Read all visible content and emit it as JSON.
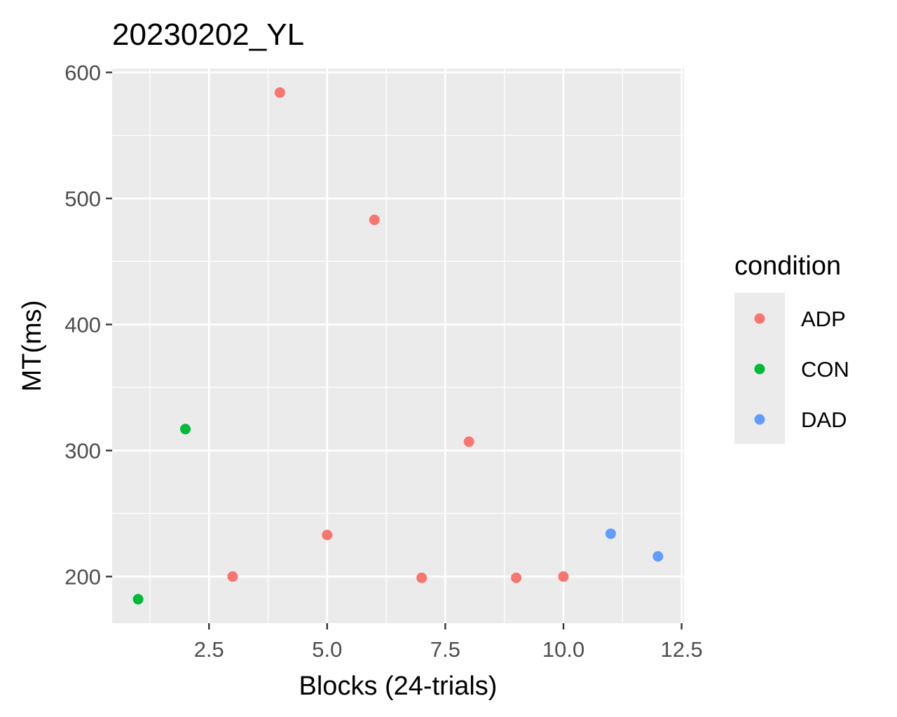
{
  "chart_data": {
    "type": "scatter",
    "title": "20230202_YL",
    "xlabel": "Blocks (24-trials)",
    "ylabel": "MT(ms)",
    "xlim": [
      0.45,
      12.55
    ],
    "ylim": [
      163,
      603
    ],
    "x_ticks": [
      2.5,
      5.0,
      7.5,
      10.0,
      12.5
    ],
    "x_tick_labels": [
      "2.5",
      "5.0",
      "7.5",
      "10.0",
      "12.5"
    ],
    "y_ticks": [
      200,
      300,
      400,
      500,
      600
    ],
    "y_tick_labels": [
      "200",
      "300",
      "400",
      "500",
      "600"
    ],
    "grid": true,
    "background": "#ebebeb",
    "legend": {
      "title": "condition",
      "position": "right",
      "entries": [
        {
          "label": "ADP",
          "color": "#f8766d"
        },
        {
          "label": "CON",
          "color": "#00ba38"
        },
        {
          "label": "DAD",
          "color": "#619cff"
        }
      ]
    },
    "series": [
      {
        "name": "ADP",
        "color": "#f8766d",
        "points": [
          {
            "x": 3,
            "y": 200
          },
          {
            "x": 4,
            "y": 584
          },
          {
            "x": 5,
            "y": 233
          },
          {
            "x": 6,
            "y": 483
          },
          {
            "x": 7,
            "y": 199
          },
          {
            "x": 8,
            "y": 307
          },
          {
            "x": 9,
            "y": 199
          },
          {
            "x": 10,
            "y": 200
          }
        ]
      },
      {
        "name": "CON",
        "color": "#00ba38",
        "points": [
          {
            "x": 1,
            "y": 182
          },
          {
            "x": 2,
            "y": 317
          }
        ]
      },
      {
        "name": "DAD",
        "color": "#619cff",
        "points": [
          {
            "x": 11,
            "y": 234
          },
          {
            "x": 12,
            "y": 216
          }
        ]
      }
    ]
  }
}
